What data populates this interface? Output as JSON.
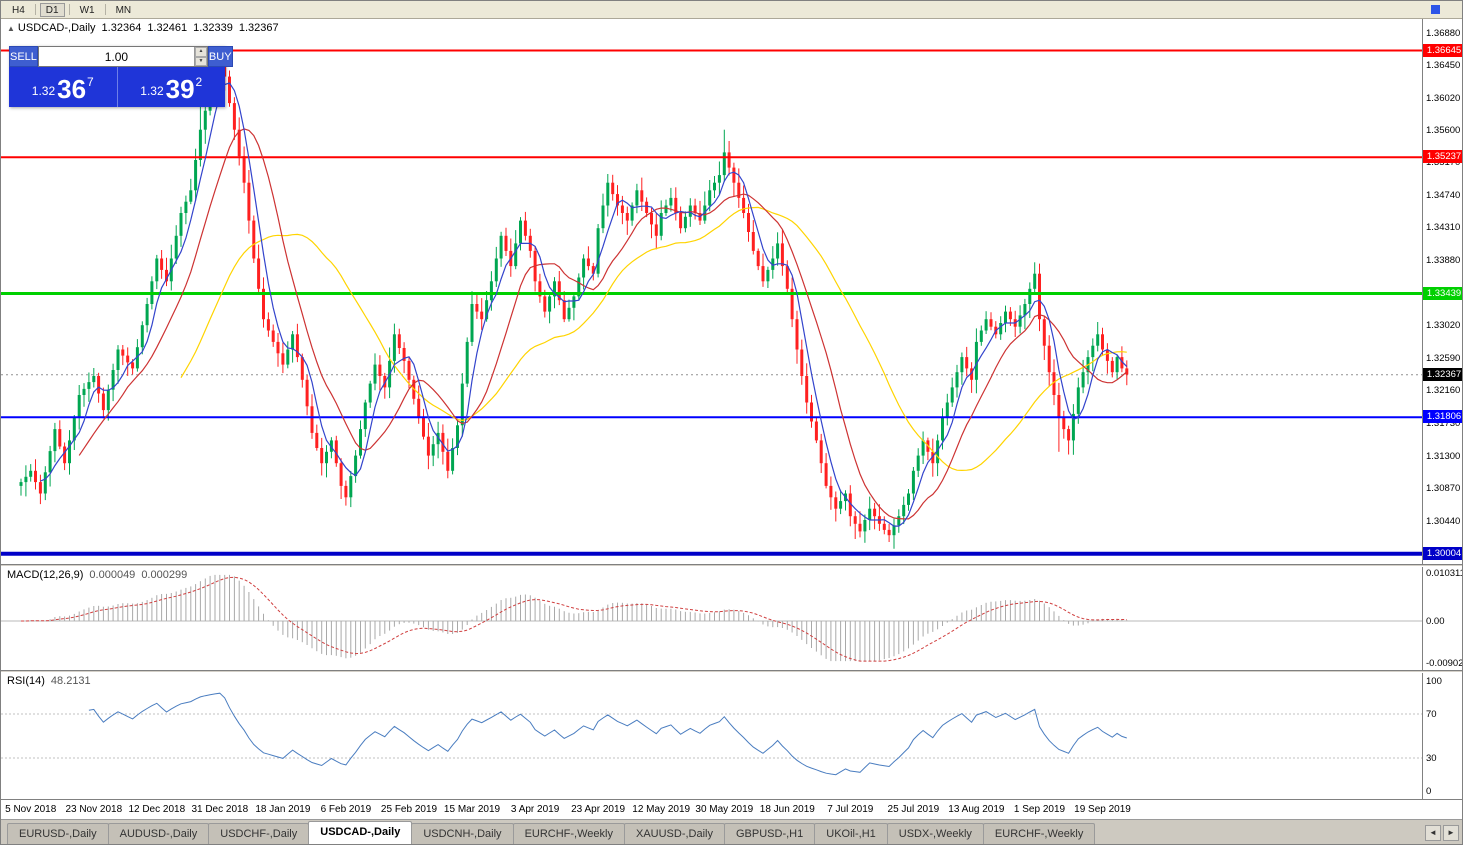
{
  "icons": {
    "symbol_marker": "▲",
    "spinner_up": "▲",
    "spinner_down": "▼",
    "nav_left": "◄",
    "nav_right": "►"
  },
  "toolbar": {
    "timeframes": [
      "H4",
      "D1",
      "W1",
      "MN"
    ],
    "active": "D1"
  },
  "chart_header": {
    "symbol": "USDCAD-,Daily",
    "open": "1.32364",
    "high": "1.32461",
    "low": "1.32339",
    "close": "1.32367"
  },
  "trade_panel": {
    "sell_label": "SELL",
    "buy_label": "BUY",
    "volume": "1.00",
    "sell_price": {
      "prefix": "1.32",
      "big": "36",
      "sup": "7"
    },
    "buy_price": {
      "prefix": "1.32",
      "big": "39",
      "sup": "2"
    }
  },
  "price_scale": {
    "ticks": [
      "1.36880",
      "1.36450",
      "1.36020",
      "1.35600",
      "1.35170",
      "1.34740",
      "1.34310",
      "1.33880",
      "1.33450",
      "1.33020",
      "1.32590",
      "1.32160",
      "1.31730",
      "1.31300",
      "1.30870",
      "1.30440",
      "1.30010"
    ],
    "current": {
      "label": "1.32367",
      "price": 1.32367
    }
  },
  "chart_data": {
    "type": "candlestick",
    "symbol": "USDCAD",
    "timeframe": "Daily",
    "price_axis": {
      "min": 1.2987,
      "max": 1.3706
    },
    "x_label_start": 2,
    "x_label_step": 13,
    "x_labels": [
      "5 Nov 2018",
      "23 Nov 2018",
      "12 Dec 2018",
      "31 Dec 2018",
      "18 Jan 2019",
      "6 Feb 2019",
      "25 Feb 2019",
      "15 Mar 2019",
      "3 Apr 2019",
      "23 Apr 2019",
      "12 May 2019",
      "30 May 2019",
      "18 Jun 2019",
      "7 Jul 2019",
      "25 Jul 2019",
      "13 Aug 2019",
      "1 Sep 2019",
      "19 Sep 2019"
    ],
    "first_open": 1.309,
    "closes": [
      1.3095,
      1.3102,
      1.311,
      1.3095,
      1.308,
      1.3108,
      1.3136,
      1.3165,
      1.3142,
      1.312,
      1.315,
      1.318,
      1.321,
      1.3218,
      1.3227,
      1.3235,
      1.3212,
      1.319,
      1.3217,
      1.3243,
      1.327,
      1.3262,
      1.3253,
      1.3245,
      1.3273,
      1.3302,
      1.333,
      1.336,
      1.339,
      1.3375,
      1.336,
      1.339,
      1.342,
      1.345,
      1.3465,
      1.348,
      1.352,
      1.356,
      1.3585,
      1.361,
      1.3628,
      1.3645,
      1.363,
      1.3595,
      1.356,
      1.3525,
      1.349,
      1.344,
      1.339,
      1.335,
      1.331,
      1.3295,
      1.328,
      1.3265,
      1.325,
      1.327,
      1.329,
      1.326,
      1.323,
      1.3195,
      1.316,
      1.314,
      1.312,
      1.3135,
      1.315,
      1.312,
      1.309,
      1.3075,
      1.3103,
      1.313,
      1.3165,
      1.32,
      1.3225,
      1.325,
      1.3235,
      1.322,
      1.3255,
      1.329,
      1.3272,
      1.3255,
      1.323,
      1.3205,
      1.318,
      1.3155,
      1.313,
      1.3145,
      1.316,
      1.3135,
      1.311,
      1.314,
      1.317,
      1.3225,
      1.328,
      1.333,
      1.332,
      1.331,
      1.3335,
      1.336,
      1.339,
      1.342,
      1.34,
      1.338,
      1.341,
      1.344,
      1.342,
      1.34,
      1.336,
      1.334,
      1.332,
      1.334,
      1.336,
      1.3335,
      1.331,
      1.3325,
      1.334,
      1.3365,
      1.339,
      1.338,
      1.337,
      1.343,
      1.346,
      1.349,
      1.3475,
      1.346,
      1.345,
      1.344,
      1.346,
      1.348,
      1.3465,
      1.345,
      1.3435,
      1.342,
      1.345,
      1.346,
      1.347,
      1.345,
      1.343,
      1.3445,
      1.346,
      1.345,
      1.344,
      1.346,
      1.348,
      1.349,
      1.35,
      1.353,
      1.351,
      1.349,
      1.347,
      1.345,
      1.3425,
      1.34,
      1.338,
      1.336,
      1.3375,
      1.339,
      1.341,
      1.338,
      1.335,
      1.331,
      1.327,
      1.3235,
      1.32,
      1.3175,
      1.315,
      1.312,
      1.309,
      1.3075,
      1.306,
      1.307,
      1.308,
      1.305,
      1.304,
      1.303,
      1.3045,
      1.306,
      1.305,
      1.304,
      1.3032,
      1.3025,
      1.3038,
      1.305,
      1.3065,
      1.308,
      1.311,
      1.313,
      1.315,
      1.3135,
      1.312,
      1.315,
      1.318,
      1.32,
      1.322,
      1.324,
      1.326,
      1.3245,
      1.323,
      1.328,
      1.3295,
      1.331,
      1.33,
      1.329,
      1.3305,
      1.332,
      1.331,
      1.33,
      1.3315,
      1.333,
      1.335,
      1.337,
      1.331,
      1.3275,
      1.324,
      1.321,
      1.318,
      1.3165,
      1.315,
      1.3185,
      1.322,
      1.324,
      1.326,
      1.3275,
      1.329,
      1.327,
      1.3255,
      1.324,
      1.326,
      1.3245,
      1.3237
    ],
    "wick_overrides": {
      "37": {
        "h": 1.36
      },
      "41": {
        "h": 1.366
      },
      "67": {
        "l": 1.3064
      },
      "88": {
        "l": 1.31
      },
      "145": {
        "h": 1.356
      },
      "146": {
        "h": 1.3545
      },
      "172": {
        "l": 1.302
      },
      "179": {
        "l": 1.3016
      },
      "209": {
        "h": 1.3385
      },
      "214": {
        "l": 1.3135
      }
    },
    "levels": [
      {
        "label": "1.36645",
        "price": 1.36645,
        "color": "#ff0000",
        "width": 2
      },
      {
        "label": "1.35237",
        "price": 1.35237,
        "color": "#ff0000",
        "width": 2
      },
      {
        "label": "1.33439",
        "price": 1.33439,
        "color": "#00d000",
        "width": 3
      },
      {
        "label": "1.31806",
        "price": 1.31806,
        "color": "#0000ff",
        "width": 2
      },
      {
        "label": "1.30004",
        "price": 1.30004,
        "color": "#0000c8",
        "width": 4
      }
    ],
    "moving_averages": [
      {
        "period": 34,
        "color": "#ffd400"
      },
      {
        "period": 13,
        "color": "#cd3333"
      },
      {
        "period": 5,
        "color": "#3344cc"
      }
    ],
    "indicators": {
      "macd": {
        "label": "MACD(12,26,9)",
        "values_text": [
          "0.000049",
          "0.000299"
        ],
        "fast": 12,
        "slow": 26,
        "signal": 9,
        "scale": {
          "max": 0.010311,
          "min": -0.0090203,
          "labels": [
            {
              "text": "0.010311",
              "value": 0.010311
            },
            {
              "text": "0.00",
              "value": 0
            },
            {
              "text": "-0.0090203",
              "value": -0.0090203
            }
          ]
        }
      },
      "rsi": {
        "label": "RSI(14)",
        "value_text": "48.2131",
        "period": 14,
        "levels": [
          70,
          30
        ],
        "scale_labels": [
          {
            "text": "100",
            "value": 100
          },
          {
            "text": "70",
            "value": 70
          },
          {
            "text": "30",
            "value": 30
          },
          {
            "text": "0",
            "value": 0
          }
        ]
      }
    }
  },
  "tabs": {
    "items": [
      "EURUSD-,Daily",
      "AUDUSD-,Daily",
      "USDCHF-,Daily",
      "USDCAD-,Daily",
      "USDCNH-,Daily",
      "EURCHF-,Weekly",
      "XAUUSD-,Daily",
      "GBPUSD-,H1",
      "UKOil-,H1",
      "USDX-,Weekly",
      "EURCHF-,Weekly"
    ],
    "active_index": 3
  },
  "colors": {
    "bull": "#00a651",
    "bear": "#ff2020",
    "macd_hist": "#a9a9a9",
    "macd_signal": "#d04040",
    "rsi_line": "#4a7dc0",
    "current_line": "#909090"
  }
}
